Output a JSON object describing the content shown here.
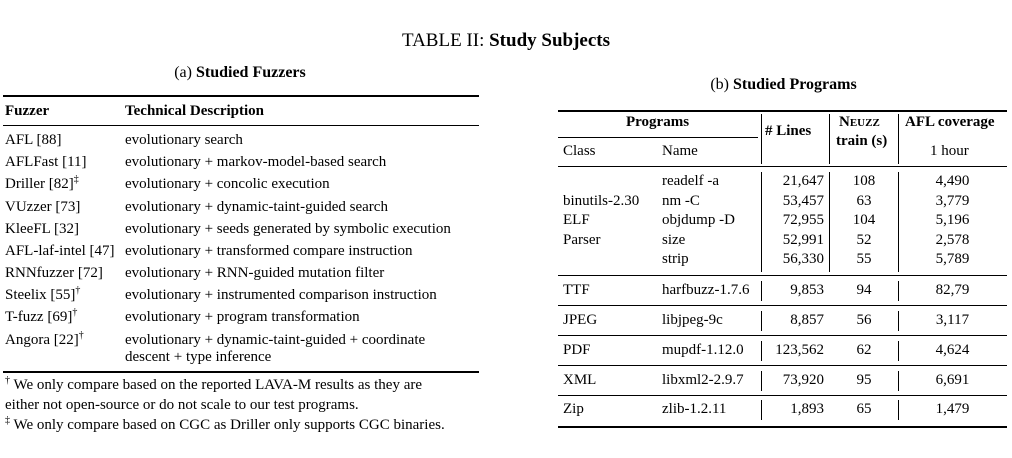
{
  "table_title": {
    "prefix": "TABLE II:",
    "title": "Study Subjects"
  },
  "fuzzers_table": {
    "caption_prefix": "(a)",
    "caption": "Studied Fuzzers",
    "headers": [
      "Fuzzer",
      "Technical Description"
    ],
    "rows": [
      {
        "fuzzer": "AFL [88]",
        "mark": "",
        "desc": "evolutionary search"
      },
      {
        "fuzzer": "AFLFast [11]",
        "mark": "",
        "desc": "evolutionary + markov-model-based search"
      },
      {
        "fuzzer": "Driller [82]",
        "mark": "‡",
        "desc": "evolutionary + concolic execution"
      },
      {
        "fuzzer": "VUzzer [73]",
        "mark": "",
        "desc": "evolutionary + dynamic-taint-guided search"
      },
      {
        "fuzzer": "KleeFL [32]",
        "mark": "",
        "desc": "evolutionary + seeds generated by symbolic execution"
      },
      {
        "fuzzer": "AFL-laf-intel [47]",
        "mark": "",
        "desc": "evolutionary + transformed compare instruction"
      },
      {
        "fuzzer": "RNNfuzzer [72]",
        "mark": "",
        "desc": "evolutionary + RNN-guided mutation filter"
      },
      {
        "fuzzer": "Steelix [55]",
        "mark": "†",
        "desc": "evolutionary + instrumented comparison instruction"
      },
      {
        "fuzzer": "T-fuzz [69]",
        "mark": "†",
        "desc": "evolutionary + program transformation"
      },
      {
        "fuzzer": "Angora [22]",
        "mark": "†",
        "desc": "evolutionary  +  dynamic-taint-guided  +  coordinate",
        "desc2": "descent + type inference"
      }
    ],
    "footnotes": [
      {
        "mark": "†",
        "text": "We only compare based on the reported LAVA-M results as they are"
      },
      {
        "mark": "",
        "text": "either not open-source or do not scale to our test programs."
      },
      {
        "mark": "‡",
        "text": "We only compare based on CGC as Driller only supports CGC binaries."
      }
    ]
  },
  "programs_table": {
    "caption_prefix": "(b)",
    "caption": "Studied Programs",
    "headers": {
      "programs": "Programs",
      "class": "Class",
      "name": "Name",
      "lines": "# Lines",
      "neuzz": "Neuzz",
      "train": "train (s)",
      "afl": "AFL coverage",
      "hour": "1 hour"
    },
    "binutils_group": {
      "class_lines": [
        "binutils-2.30",
        "ELF",
        "Parser"
      ],
      "rows": [
        {
          "name": "readelf -a",
          "lines": "21,647",
          "train": "108",
          "cov": "4,490"
        },
        {
          "name": "nm -C",
          "lines": "53,457",
          "train": "63",
          "cov": "3,779"
        },
        {
          "name": "objdump -D",
          "lines": "72,955",
          "train": "104",
          "cov": "5,196"
        },
        {
          "name": "size",
          "lines": "52,991",
          "train": "52",
          "cov": "2,578"
        },
        {
          "name": "strip",
          "lines": "56,330",
          "train": "55",
          "cov": "5,789"
        }
      ]
    },
    "other_rows": [
      {
        "class": "TTF",
        "name": "harfbuzz-1.7.6",
        "lines": "9,853",
        "train": "94",
        "cov": "82,79"
      },
      {
        "class": "JPEG",
        "name": "libjpeg-9c",
        "lines": "8,857",
        "train": "56",
        "cov": "3,117"
      },
      {
        "class": "PDF",
        "name": "mupdf-1.12.0",
        "lines": "123,562",
        "train": "62",
        "cov": "4,624"
      },
      {
        "class": "XML",
        "name": "libxml2-2.9.7",
        "lines": "73,920",
        "train": "95",
        "cov": "6,691"
      },
      {
        "class": "Zip",
        "name": "zlib-1.2.11",
        "lines": "1,893",
        "train": "65",
        "cov": "1,479"
      }
    ]
  }
}
